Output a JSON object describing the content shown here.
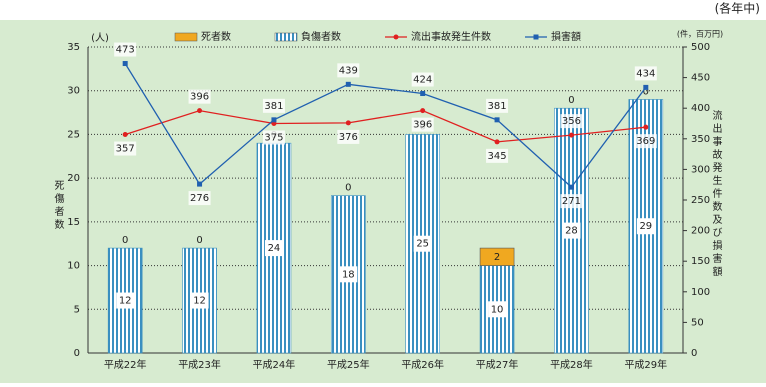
{
  "chart_data": {
    "type": "bar",
    "note": "(各年中)",
    "y_unit": "(人)",
    "y2_unit": "(件，百万円)",
    "ylabel": "死傷者数",
    "y2label": "流出事故発生件数及び損害額",
    "categories": [
      "平成22年",
      "平成23年",
      "平成24年",
      "平成25年",
      "平成26年",
      "平成27年",
      "平成28年",
      "平成29年"
    ],
    "series": [
      {
        "name": "死者数",
        "color": "#f0a820",
        "values": [
          0,
          0,
          0,
          0,
          0,
          2,
          0,
          0
        ]
      },
      {
        "name": "負傷者数",
        "color": "#3a8fc0",
        "values": [
          12,
          12,
          24,
          18,
          25,
          10,
          28,
          29
        ]
      },
      {
        "name": "流出事故発生件数",
        "type": "line",
        "axis": "y2",
        "color": "#e02020",
        "values": [
          357,
          396,
          375,
          376,
          396,
          345,
          356,
          369
        ]
      },
      {
        "name": "損害額",
        "type": "line",
        "axis": "y2",
        "color": "#2060b0",
        "values": [
          473,
          276,
          381,
          439,
          424,
          381,
          271,
          434
        ]
      }
    ],
    "ylim": [
      0,
      35
    ],
    "yticks": [
      0,
      5,
      10,
      15,
      20,
      25,
      30,
      35
    ],
    "y2lim": [
      0,
      500
    ],
    "y2ticks": [
      0,
      50,
      100,
      150,
      200,
      250,
      300,
      350,
      400,
      450,
      500
    ],
    "grid": true
  }
}
